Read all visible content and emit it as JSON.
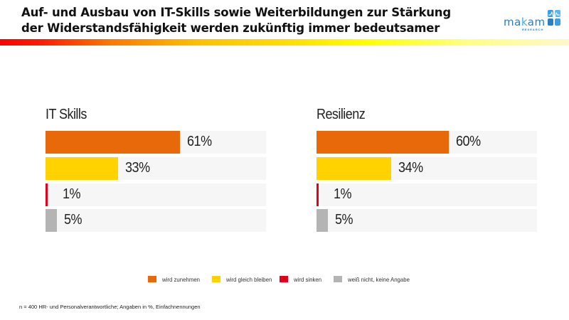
{
  "header": {
    "title_line1": "Auf- und Ausbau von IT-Skills sowie Weiterbildungen zur Stärkung",
    "title_line2": "der Widerstandsfähigkeit werden zukünftig immer bedeutsamer",
    "logo": {
      "text_a": "ma",
      "text_k": "k",
      "text_b": "am",
      "sub": "RESEARCH",
      "icon": "makam-logo-icon"
    }
  },
  "colors": {
    "wird_zunehmen": "#e8690a",
    "wird_gleich_bleiben": "#ffd200",
    "wird_sinken": "#e2001a",
    "weiss_nicht": "#b4b4b4",
    "track": "#f6f6f6"
  },
  "chart_data": [
    {
      "type": "bar",
      "orientation": "horizontal",
      "title": "IT Skills",
      "categories": [
        "wird zunehmen",
        "wird gleich bleiben",
        "wird sinken",
        "weiß nicht, keine Angabe"
      ],
      "values": [
        61,
        33,
        1,
        5
      ],
      "labels": [
        "61%",
        "33%",
        "1%",
        "5%"
      ],
      "xlim": [
        0,
        100
      ],
      "unit": "%"
    },
    {
      "type": "bar",
      "orientation": "horizontal",
      "title": "Resilienz",
      "categories": [
        "wird zunehmen",
        "wird gleich bleiben",
        "wird sinken",
        "weiß nicht, keine Angabe"
      ],
      "values": [
        60,
        34,
        1,
        5
      ],
      "labels": [
        "60%",
        "34%",
        "1%",
        "5%"
      ],
      "xlim": [
        0,
        100
      ],
      "unit": "%"
    }
  ],
  "legend": {
    "placement": "bottom",
    "items": [
      {
        "label": "wird zunehmen",
        "color": "#e8690a"
      },
      {
        "label": "wird gleich bleiben",
        "color": "#ffd200"
      },
      {
        "label": "wird sinken",
        "color": "#e2001a"
      },
      {
        "label": "weiß nicht, keine Angabe",
        "color": "#b4b4b4"
      }
    ]
  },
  "footnote": "n = 400 HR- und Personalverantwortliche;  Angaben in %, Einfachnennungen"
}
